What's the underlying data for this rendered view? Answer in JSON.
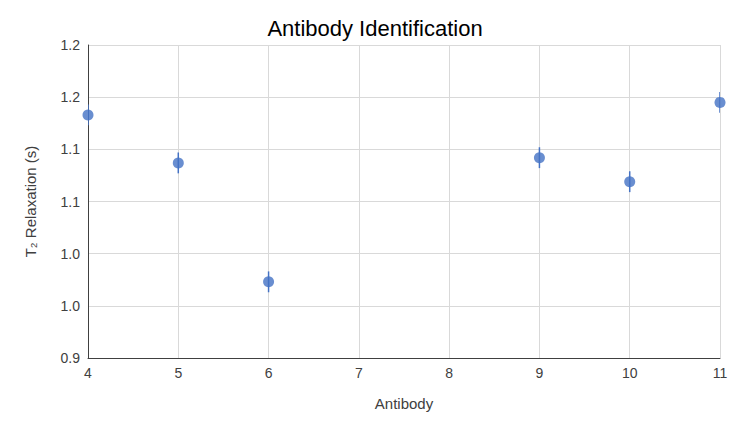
{
  "chart_data": {
    "type": "scatter",
    "title": "Antibody Identification",
    "x_label": "Antibody",
    "y_label": "T₂ Relaxation (s)",
    "x": [
      4,
      5,
      6,
      9,
      10,
      11
    ],
    "values": [
      1.133,
      1.087,
      0.973,
      1.092,
      1.069,
      1.145
    ],
    "errors": [
      0.01,
      0.01,
      0.01,
      0.01,
      0.01,
      0.01
    ],
    "color": "#4472c4",
    "marker": "circle",
    "xlim": [
      4,
      11
    ],
    "xticks": [
      4,
      5,
      6,
      7,
      8,
      9,
      10,
      11
    ],
    "ylim": [
      0.9,
      1.2
    ],
    "yticks": [
      0.9,
      {
        "value": 0.95,
        "label": "1.0"
      },
      {
        "value": 1.0,
        "label": "1.0"
      },
      {
        "value": 1.05,
        "label": "1.1"
      },
      {
        "value": 1.1,
        "label": "1.1"
      },
      {
        "value": 1.15,
        "label": "1.2"
      },
      {
        "value": 1.2,
        "label": "1.2"
      }
    ],
    "grid": true
  }
}
